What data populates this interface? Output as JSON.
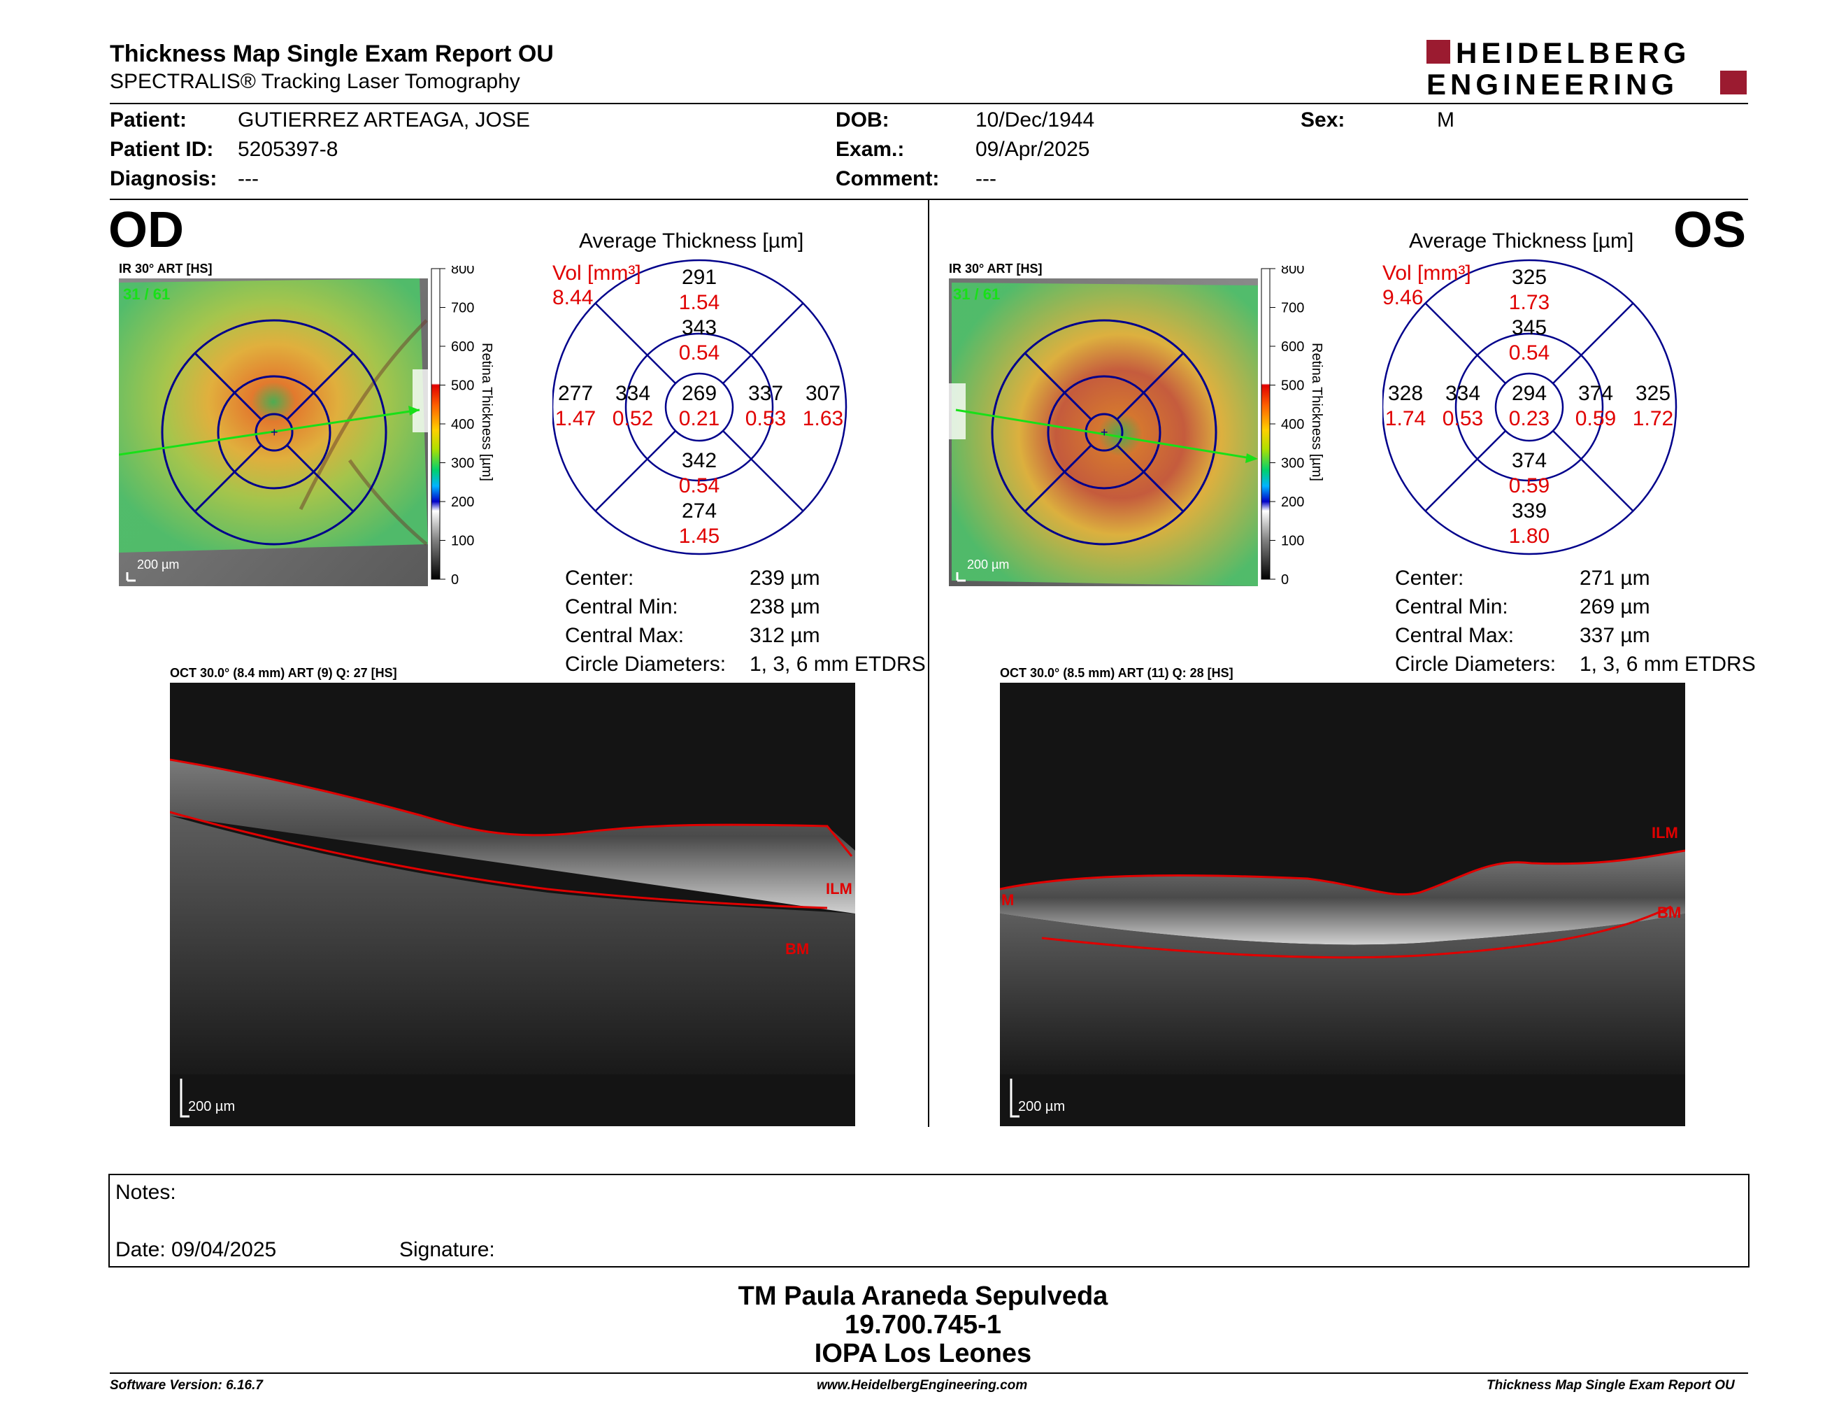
{
  "header": {
    "title": "Thickness Map Single Exam Report OU",
    "subtitle": "SPECTRALIS® Tracking Laser Tomography",
    "logo_line1": "HEIDELBERG",
    "logo_line2": "ENGINEERING"
  },
  "patient": {
    "patient_label": "Patient:",
    "patient_value": "GUTIERREZ ARTEAGA, JOSE",
    "id_label": "Patient ID:",
    "id_value": "5205397-8",
    "diagnosis_label": "Diagnosis:",
    "diagnosis_value": "---",
    "dob_label": "DOB:",
    "dob_value": "10/Dec/1944",
    "exam_label": "Exam.:",
    "exam_value": "09/Apr/2025",
    "comment_label": "Comment:",
    "comment_value": "---",
    "sex_label": "Sex:",
    "sex_value": "M"
  },
  "od": {
    "eye": "OD",
    "ir_label": "IR 30° ART [HS]",
    "ir_frames": "31 / 61",
    "scale_bar": "200 µm",
    "colorbar_ticks": [
      "800",
      "700",
      "600",
      "500",
      "400",
      "300",
      "200",
      "100",
      "0"
    ],
    "colorbar_title": "Retina Thickness [µm]",
    "avg_title": "Average Thickness [µm]",
    "vol_label": "Vol [mm³]",
    "vol_value": "8.44",
    "sectors": {
      "outer_sup": {
        "t": "291",
        "v": "1.54"
      },
      "inner_sup": {
        "t": "343",
        "v": "0.54"
      },
      "outer_temp": {
        "t": "277",
        "v": "1.47"
      },
      "inner_temp": {
        "t": "334",
        "v": "0.52"
      },
      "center": {
        "t": "269",
        "v": "0.21"
      },
      "inner_nas": {
        "t": "337",
        "v": "0.53"
      },
      "outer_nas": {
        "t": "307",
        "v": "1.63"
      },
      "inner_inf": {
        "t": "342",
        "v": "0.54"
      },
      "outer_inf": {
        "t": "274",
        "v": "1.45"
      }
    },
    "stats": [
      {
        "label": "Center:",
        "value": "239 µm"
      },
      {
        "label": "Central Min:",
        "value": "238 µm"
      },
      {
        "label": "Central Max:",
        "value": "312 µm"
      },
      {
        "label": "Circle Diameters:",
        "value": "1, 3, 6 mm ETDRS"
      }
    ],
    "oct_label": "OCT 30.0° (8.4 mm) ART (9) Q: 27 [HS]",
    "oct_scale": "200 µm",
    "ilm": "ILM",
    "bm": "BM"
  },
  "os": {
    "eye": "OS",
    "ir_label": "IR 30° ART [HS]",
    "ir_frames": "31 / 61",
    "scale_bar": "200 µm",
    "colorbar_ticks": [
      "800",
      "700",
      "600",
      "500",
      "400",
      "300",
      "200",
      "100",
      "0"
    ],
    "colorbar_title": "Retina Thickness [µm]",
    "avg_title": "Average Thickness [µm]",
    "vol_label": "Vol [mm³]",
    "vol_value": "9.46",
    "sectors": {
      "outer_sup": {
        "t": "325",
        "v": "1.73"
      },
      "inner_sup": {
        "t": "345",
        "v": "0.54"
      },
      "outer_temp": {
        "t": "328",
        "v": "1.74"
      },
      "inner_temp": {
        "t": "334",
        "v": "0.53"
      },
      "center": {
        "t": "294",
        "v": "0.23"
      },
      "inner_nas": {
        "t": "374",
        "v": "0.59"
      },
      "outer_nas": {
        "t": "325",
        "v": "1.72"
      },
      "inner_inf": {
        "t": "374",
        "v": "0.59"
      },
      "outer_inf": {
        "t": "339",
        "v": "1.80"
      }
    },
    "stats": [
      {
        "label": "Center:",
        "value": "271 µm"
      },
      {
        "label": "Central Min:",
        "value": "269 µm"
      },
      {
        "label": "Central Max:",
        "value": "337 µm"
      },
      {
        "label": "Circle Diameters:",
        "value": "1, 3, 6 mm ETDRS"
      }
    ],
    "oct_label": "OCT 30.0° (8.5 mm) ART (11) Q: 28 [HS]",
    "oct_scale": "200 µm",
    "ilm": "ILM",
    "bm": "BM",
    "ilm_left": "M"
  },
  "notes": {
    "notes_label": "Notes:",
    "date_label": "Date: 09/04/2025",
    "signature_label": "Signature:"
  },
  "signature_block": {
    "line1": "TM Paula Araneda Sepulveda",
    "line2": "19.700.745-1",
    "line3": "IOPA Los Leones"
  },
  "footer": {
    "software": "Software Version: 6.16.7",
    "website": "www.HeidelbergEngineering.com",
    "report": "Thickness Map Single Exam Report OU"
  },
  "colors": {
    "red": "#e00000",
    "blue": "#00008b",
    "logo_red": "#9b1b30"
  }
}
